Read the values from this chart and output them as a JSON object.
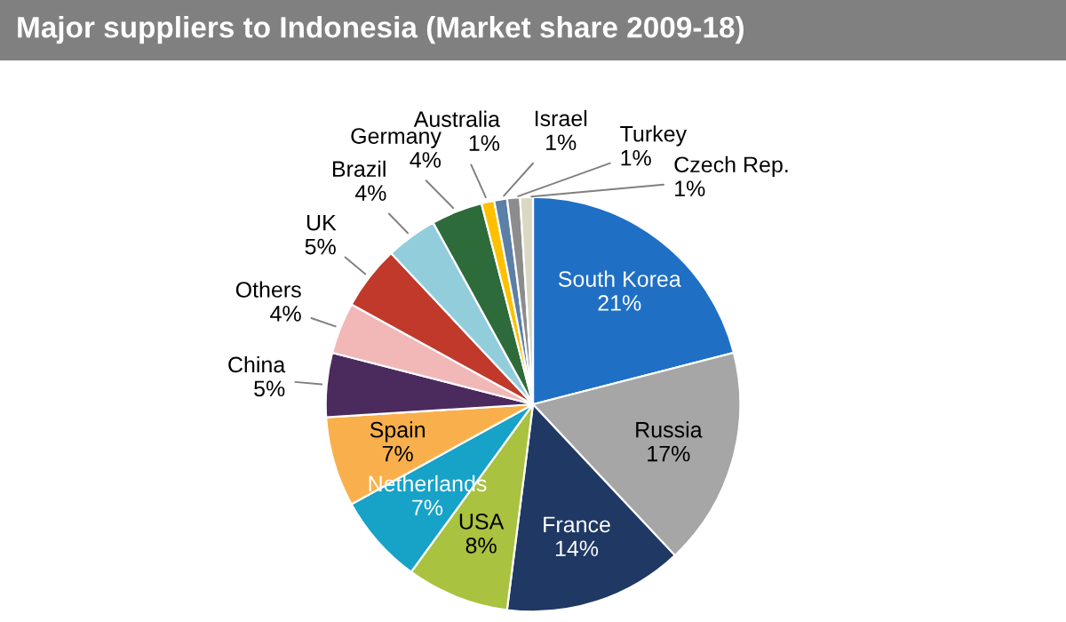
{
  "chart_data": {
    "type": "pie",
    "title": "Major suppliers to Indonesia (Market share 2009-18)",
    "categories": [
      "South Korea",
      "Russia",
      "France",
      "USA",
      "Netherlands",
      "Spain",
      "China",
      "Others",
      "UK",
      "Brazil",
      "Germany",
      "Australia",
      "Israel",
      "Turkey",
      "Czech Rep."
    ],
    "values": [
      21,
      17,
      14,
      8,
      7,
      7,
      5,
      4,
      5,
      4,
      4,
      1,
      1,
      1,
      1
    ],
    "value_labels": [
      "21%",
      "17%",
      "14%",
      "8%",
      "7%",
      "7%",
      "5%",
      "4%",
      "5%",
      "4%",
      "4%",
      "1%",
      "1%",
      "1%",
      "1%"
    ],
    "colors": [
      "#1f6fc5",
      "#a6a6a6",
      "#1f3864",
      "#a9c23f",
      "#17a2c8",
      "#f9b04c",
      "#4b2a5e",
      "#f2b8b8",
      "#c0392b",
      "#92cddc",
      "#2e6b3a",
      "#ffc000",
      "#5b7fa6",
      "#8c8c8c",
      "#d9d9c3"
    ],
    "legend": false
  }
}
